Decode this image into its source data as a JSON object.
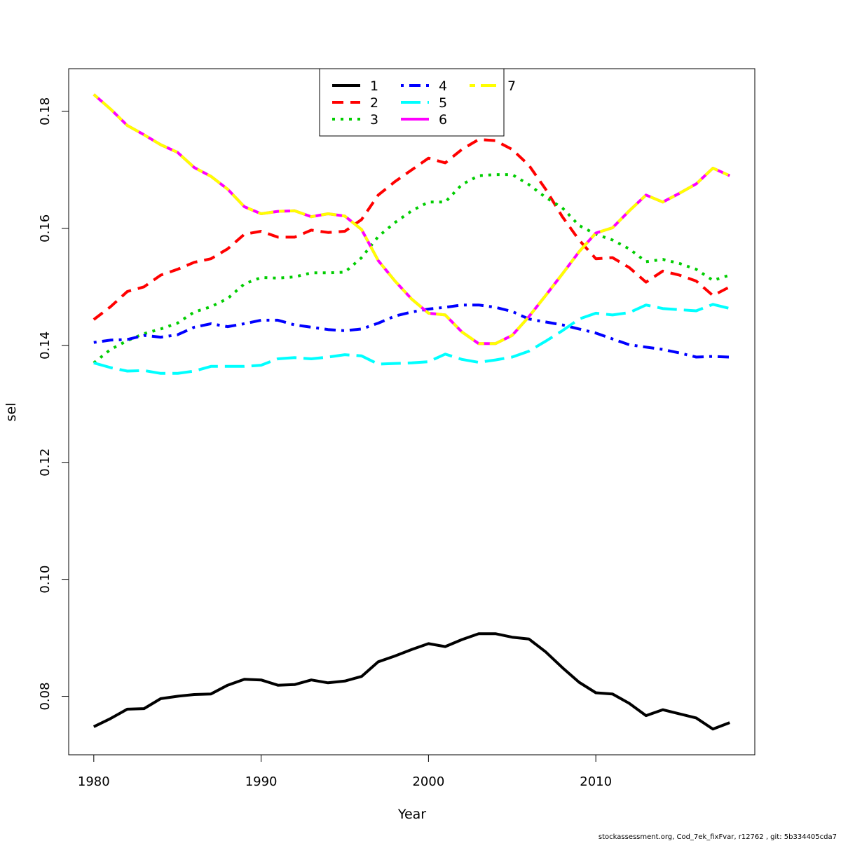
{
  "chart_data": {
    "type": "line",
    "title": "",
    "xlabel": "Year",
    "ylabel": "sel",
    "xlim": [
      1978.5,
      2019.5
    ],
    "ylim": [
      0.07,
      0.1873
    ],
    "xticks": [
      1980,
      1990,
      2000,
      2010
    ],
    "yticks": [
      0.08,
      0.1,
      0.12,
      0.14,
      0.16,
      0.18
    ],
    "ytick_labels": [
      "0.08",
      "0.10",
      "0.12",
      "0.14",
      "0.16",
      "0.18"
    ],
    "xtick_labels": [
      "1980",
      "1990",
      "2000",
      "2010"
    ],
    "footer": "stockassessment.org, Cod_7ek_fixFvar, r12762 , git: 5b334405cda7",
    "x": [
      1980,
      1981,
      1982,
      1983,
      1984,
      1985,
      1986,
      1987,
      1988,
      1989,
      1990,
      1991,
      1992,
      1993,
      1994,
      1995,
      1996,
      1997,
      1998,
      1999,
      2000,
      2001,
      2002,
      2003,
      2004,
      2005,
      2006,
      2007,
      2008,
      2009,
      2010,
      2011,
      2012,
      2013,
      2014,
      2015,
      2016,
      2017,
      2018
    ],
    "series": [
      {
        "name": "1",
        "color": "#000000",
        "dash": "solid",
        "values": [
          0.0748,
          0.0762,
          0.0778,
          0.0779,
          0.0796,
          0.08,
          0.0803,
          0.0804,
          0.0819,
          0.0829,
          0.0828,
          0.0819,
          0.082,
          0.0828,
          0.0823,
          0.0826,
          0.0834,
          0.0859,
          0.0869,
          0.088,
          0.089,
          0.0885,
          0.0897,
          0.0907,
          0.0907,
          0.0901,
          0.0898,
          0.0876,
          0.0849,
          0.0824,
          0.0806,
          0.0804,
          0.0788,
          0.0767,
          0.0777,
          0.077,
          0.0763,
          0.0744,
          0.0755
        ]
      },
      {
        "name": "2",
        "color": "#ff0000",
        "dash": "dashed",
        "values": [
          0.1444,
          0.1466,
          0.1492,
          0.15,
          0.152,
          0.153,
          0.1542,
          0.1548,
          0.1565,
          0.159,
          0.1595,
          0.1585,
          0.1585,
          0.1597,
          0.1593,
          0.1595,
          0.1615,
          0.1657,
          0.168,
          0.17,
          0.172,
          0.1712,
          0.1735,
          0.1752,
          0.175,
          0.1735,
          0.1708,
          0.1667,
          0.162,
          0.158,
          0.1548,
          0.155,
          0.1533,
          0.1508,
          0.1527,
          0.152,
          0.151,
          0.1485,
          0.15
        ]
      },
      {
        "name": "3",
        "color": "#00cd00",
        "dash": "dotted",
        "values": [
          0.137,
          0.1393,
          0.1408,
          0.142,
          0.1428,
          0.1438,
          0.1457,
          0.1466,
          0.148,
          0.1505,
          0.1516,
          0.1515,
          0.1517,
          0.1524,
          0.1524,
          0.1525,
          0.155,
          0.1586,
          0.161,
          0.163,
          0.1645,
          0.1645,
          0.1675,
          0.169,
          0.1692,
          0.1692,
          0.1675,
          0.1653,
          0.1635,
          0.1605,
          0.159,
          0.158,
          0.1565,
          0.1543,
          0.1547,
          0.154,
          0.153,
          0.1511,
          0.152
        ]
      },
      {
        "name": "4",
        "color": "#0000ff",
        "dash": "dotdash",
        "values": [
          0.1405,
          0.1409,
          0.141,
          0.1417,
          0.1414,
          0.1418,
          0.1431,
          0.1437,
          0.1432,
          0.1437,
          0.1443,
          0.1443,
          0.1435,
          0.1431,
          0.1427,
          0.1425,
          0.1428,
          0.1438,
          0.145,
          0.1457,
          0.1462,
          0.1465,
          0.1469,
          0.1469,
          0.1465,
          0.1458,
          0.1445,
          0.144,
          0.1435,
          0.1428,
          0.1421,
          0.1411,
          0.1401,
          0.1397,
          0.1393,
          0.1387,
          0.138,
          0.1381,
          0.138
        ]
      },
      {
        "name": "5",
        "color": "#00ffff",
        "dash": "longdash",
        "values": [
          0.137,
          0.1362,
          0.1356,
          0.1357,
          0.1352,
          0.1352,
          0.1356,
          0.1364,
          0.1364,
          0.1364,
          0.1366,
          0.1377,
          0.1379,
          0.1377,
          0.138,
          0.1384,
          0.1382,
          0.1368,
          0.1369,
          0.137,
          0.1372,
          0.1385,
          0.1376,
          0.1371,
          0.1375,
          0.138,
          0.139,
          0.1407,
          0.1425,
          0.1445,
          0.1455,
          0.1452,
          0.1456,
          0.1469,
          0.1463,
          0.1461,
          0.1459,
          0.147,
          0.1463
        ]
      },
      {
        "name": "6",
        "color": "#ff00ff",
        "dash": "solid",
        "values": [
          0.1829,
          0.1804,
          0.1776,
          0.176,
          0.1743,
          0.173,
          0.1704,
          0.1689,
          0.1667,
          0.1637,
          0.1625,
          0.1629,
          0.163,
          0.162,
          0.1625,
          0.1621,
          0.1598,
          0.1545,
          0.151,
          0.1479,
          0.1455,
          0.1452,
          0.1423,
          0.1403,
          0.1403,
          0.1417,
          0.1449,
          0.1485,
          0.1522,
          0.156,
          0.1592,
          0.1601,
          0.163,
          0.1657,
          0.1645,
          0.166,
          0.1676,
          0.1703,
          0.169
        ]
      },
      {
        "name": "7",
        "color": "#ffff00",
        "dash": "twodash",
        "values": [
          0.1829,
          0.1804,
          0.1776,
          0.176,
          0.1743,
          0.173,
          0.1704,
          0.1689,
          0.1667,
          0.1637,
          0.1625,
          0.1629,
          0.163,
          0.162,
          0.1625,
          0.1621,
          0.1598,
          0.1545,
          0.151,
          0.1479,
          0.1455,
          0.1452,
          0.1423,
          0.1403,
          0.1403,
          0.1417,
          0.1449,
          0.1485,
          0.1522,
          0.156,
          0.1592,
          0.1601,
          0.163,
          0.1657,
          0.1645,
          0.166,
          0.1676,
          0.1703,
          0.169
        ]
      }
    ],
    "legend": {
      "position": "top-center",
      "order": [
        "1",
        "2",
        "3",
        "4",
        "5",
        "6",
        "7"
      ]
    }
  }
}
